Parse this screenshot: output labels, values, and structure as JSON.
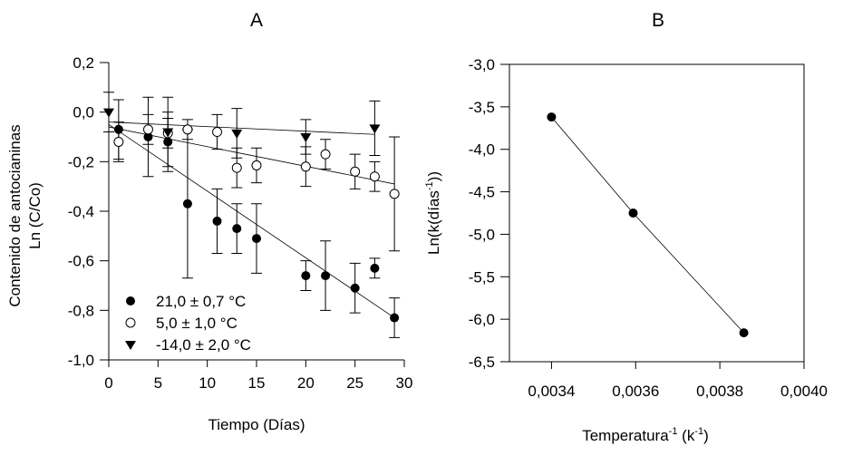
{
  "chart_data": [
    {
      "type": "scatter",
      "title": "A",
      "xlabel": "Tiempo (Días)",
      "ylabel_lines": [
        "Contenido de antocianinas",
        "Ln (C/Co)"
      ],
      "xlim": [
        0,
        30
      ],
      "ylim": [
        -1.0,
        0.2
      ],
      "xticks": [
        0,
        5,
        10,
        15,
        20,
        25,
        30
      ],
      "xtick_labels": [
        "0",
        "5",
        "10",
        "15",
        "20",
        "25",
        "30"
      ],
      "yticks": [
        0.2,
        0.0,
        -0.2,
        -0.4,
        -0.6,
        -0.8,
        -1.0
      ],
      "ytick_labels": [
        "0,2",
        "0,0",
        "-0,2",
        "-0,4",
        "-0,6",
        "-0,8",
        "-1,0"
      ],
      "grid": false,
      "legend_placement": "bottom-left",
      "series": [
        {
          "name": "21,0 ± 0,7 °C",
          "marker": "filled-circle",
          "x": [
            1,
            4,
            6,
            8,
            11,
            13,
            15,
            20,
            22,
            25,
            27,
            29
          ],
          "y": [
            -0.07,
            -0.1,
            -0.12,
            -0.37,
            -0.44,
            -0.47,
            -0.51,
            -0.66,
            -0.66,
            -0.71,
            -0.63,
            -0.83
          ],
          "error": [
            0.12,
            0.16,
            0.12,
            0.3,
            0.13,
            0.1,
            0.14,
            0.06,
            0.14,
            0.1,
            0.04,
            0.08
          ],
          "fit": {
            "x": [
              0,
              29
            ],
            "y": [
              -0.05,
              -0.83
            ]
          }
        },
        {
          "name": "5,0 ± 1,0 °C",
          "marker": "open-circle",
          "x": [
            1,
            4,
            6,
            8,
            11,
            13,
            15,
            20,
            22,
            25,
            27,
            29
          ],
          "y": [
            -0.12,
            -0.07,
            -0.085,
            -0.07,
            -0.08,
            -0.225,
            -0.215,
            -0.22,
            -0.17,
            -0.24,
            -0.26,
            -0.33
          ],
          "error": [
            0.08,
            0.06,
            0.06,
            0.04,
            0.07,
            0.08,
            0.07,
            0.08,
            0.06,
            0.07,
            0.06,
            0.23
          ],
          "fit": {
            "x": [
              0,
              29
            ],
            "y": [
              -0.06,
              -0.29
            ]
          }
        },
        {
          "name": "-14,0 ± 2,0 °C",
          "marker": "filled-triangle-down",
          "x": [
            0,
            6,
            13,
            20,
            27
          ],
          "y": [
            0.0,
            -0.08,
            -0.085,
            -0.1,
            -0.065
          ],
          "error": [
            0.08,
            0.14,
            0.1,
            0.07,
            0.11
          ],
          "fit": {
            "x": [
              0,
              27
            ],
            "y": [
              -0.04,
              -0.09
            ]
          }
        }
      ]
    },
    {
      "type": "scatter",
      "title": "B",
      "xlabel": "Temperatura",
      "xlabel_sup": "-1",
      "xlabel_unit": " (k",
      "xlabel_unit_sup": "-1",
      "xlabel_close": ")",
      "ylabel": "Ln(k(días",
      "ylabel_sup": "-1",
      "ylabel_close": "))",
      "xlim": [
        0.0033,
        0.004
      ],
      "ylim": [
        -6.5,
        -3.0
      ],
      "xticks": [
        0.0034,
        0.0036,
        0.0038,
        0.004
      ],
      "xtick_labels": [
        "0,0034",
        "0,0036",
        "0,0038",
        "0,0040"
      ],
      "yticks": [
        -3.0,
        -3.5,
        -4.0,
        -4.5,
        -5.0,
        -5.5,
        -6.0,
        -6.5
      ],
      "ytick_labels": [
        "-3,0",
        "-3,5",
        "-4,0",
        "-4,5",
        "-5,0",
        "-5,5",
        "-6,0",
        "-6,5"
      ],
      "grid": false,
      "series": [
        {
          "marker": "filled-circle",
          "x": [
            0.0034,
            0.003594,
            0.003857
          ],
          "y": [
            -3.62,
            -4.75,
            -6.16
          ],
          "connected": true
        }
      ]
    }
  ]
}
